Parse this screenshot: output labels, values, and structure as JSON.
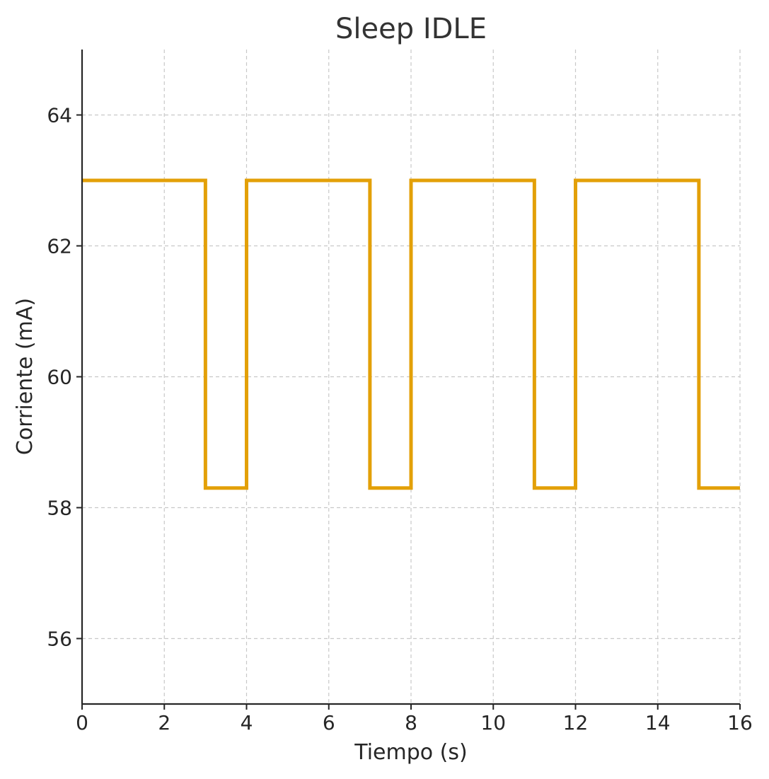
{
  "chart_data": {
    "type": "line",
    "step": true,
    "title": "Sleep IDLE",
    "xlabel": "Tiempo (s)",
    "ylabel": "Corriente (mA)",
    "xlim": [
      0,
      16
    ],
    "ylim": [
      55,
      65
    ],
    "xticks": [
      0,
      2,
      4,
      6,
      8,
      10,
      12,
      14,
      16
    ],
    "yticks": [
      56,
      58,
      60,
      62,
      64
    ],
    "grid": true,
    "legend": "none",
    "series": [
      {
        "color": "#e3a008",
        "x": [
          0,
          3,
          3,
          4,
          4,
          7,
          7,
          8,
          8,
          11,
          11,
          12,
          12,
          15,
          15,
          16
        ],
        "y": [
          63,
          63,
          58.3,
          58.3,
          63,
          63,
          58.3,
          58.3,
          63,
          63,
          58.3,
          58.3,
          63,
          63,
          58.3,
          58.3
        ]
      }
    ]
  }
}
